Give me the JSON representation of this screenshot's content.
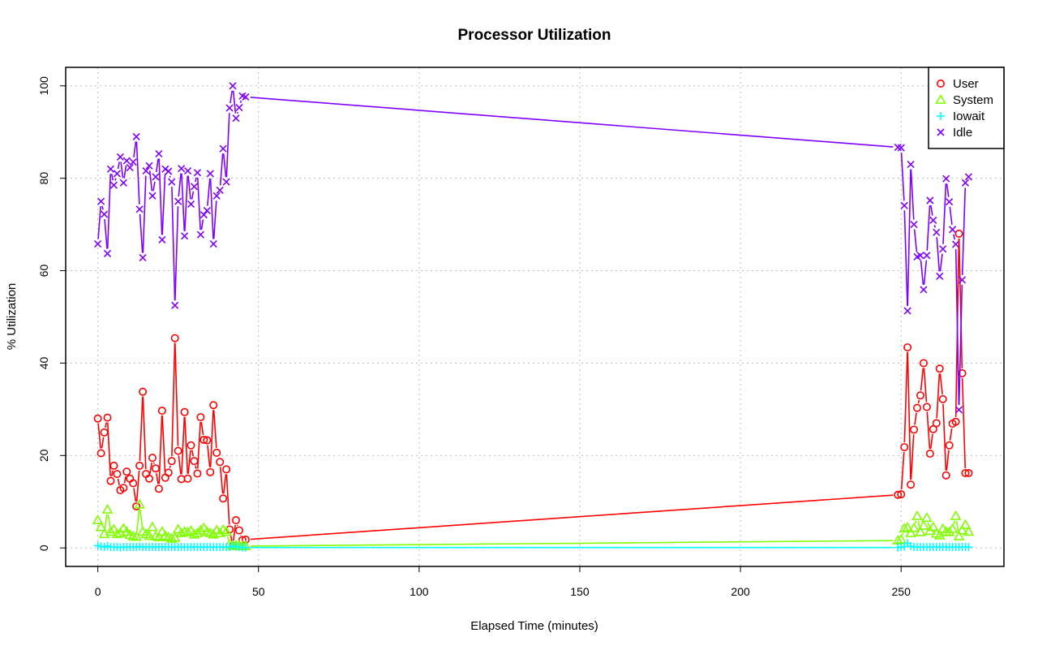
{
  "chart_data": {
    "type": "line",
    "title": "Processor Utilization",
    "xlabel": "Elapsed Time (minutes)",
    "ylabel": "% Utilization",
    "xlim": [
      -10,
      282
    ],
    "ylim": [
      -4,
      104
    ],
    "xticks": [
      0,
      50,
      100,
      150,
      200,
      250
    ],
    "yticks": [
      0,
      20,
      40,
      60,
      80,
      100
    ],
    "grid": true,
    "legend_position": "top-right",
    "series": [
      {
        "name": "User",
        "color": "#ff0000",
        "marker": "circle",
        "x": [
          0,
          1,
          2,
          3,
          4,
          5,
          6,
          7,
          8,
          9,
          10,
          11,
          12,
          13,
          14,
          15,
          16,
          17,
          18,
          19,
          20,
          21,
          22,
          23,
          24,
          25,
          26,
          27,
          28,
          29,
          30,
          31,
          32,
          33,
          34,
          35,
          36,
          37,
          38,
          39,
          40,
          41,
          42,
          43,
          44,
          45,
          46,
          249,
          250,
          251,
          252,
          253,
          254,
          255,
          256,
          257,
          258,
          259,
          260,
          261,
          262,
          263,
          264,
          265,
          266,
          267,
          268,
          269,
          270,
          271
        ],
        "y": [
          28,
          20.5,
          25,
          28.2,
          14.5,
          17.8,
          16,
          12.5,
          13,
          16.5,
          15,
          14,
          9,
          17.8,
          33.8,
          16,
          15,
          19.5,
          17.2,
          12.8,
          29.7,
          15.2,
          16.3,
          18.8,
          45.4,
          21,
          14.9,
          29.4,
          15,
          22.2,
          18.8,
          16.1,
          28.3,
          23.4,
          23.3,
          16.4,
          30.9,
          20.6,
          18.6,
          10.7,
          17,
          4,
          0.5,
          6,
          3.8,
          1.7,
          1.8,
          11.5,
          11.6,
          21.8,
          43.4,
          13.7,
          25.6,
          30.3,
          33,
          40,
          30.5,
          20.4,
          25.7,
          27,
          38.8,
          32.2,
          15.7,
          22.2,
          26.9,
          27.3,
          68,
          37.8,
          16.2,
          16.2
        ]
      },
      {
        "name": "System",
        "color": "#80ff00",
        "marker": "triangle",
        "x": [
          0,
          1,
          2,
          3,
          4,
          5,
          6,
          7,
          8,
          9,
          10,
          11,
          12,
          13,
          14,
          15,
          16,
          17,
          18,
          19,
          20,
          21,
          22,
          23,
          24,
          25,
          26,
          27,
          28,
          29,
          30,
          31,
          32,
          33,
          34,
          35,
          36,
          37,
          38,
          39,
          40,
          41,
          42,
          43,
          44,
          45,
          46,
          249,
          250,
          251,
          252,
          253,
          254,
          255,
          256,
          257,
          258,
          259,
          260,
          261,
          262,
          263,
          264,
          265,
          266,
          267,
          268,
          269,
          270,
          271
        ],
        "y": [
          6,
          4.5,
          3,
          8.3,
          3.5,
          4,
          3,
          3.2,
          4.2,
          3.5,
          2.8,
          2.5,
          2.4,
          9.4,
          3.5,
          3,
          2.6,
          4.5,
          2.5,
          2.3,
          3.5,
          2.6,
          2.3,
          2,
          2.2,
          4,
          3.2,
          3.5,
          3.4,
          3.7,
          2.9,
          3.2,
          3.8,
          4.3,
          3.5,
          3.2,
          2.9,
          3.8,
          3.2,
          3.9,
          3.5,
          0.8,
          0.4,
          0.6,
          0.5,
          0.4,
          0.4,
          1.6,
          1.8,
          4.2,
          4.4,
          3.2,
          4.3,
          6.9,
          3.4,
          4.8,
          6.5,
          3.7,
          4.5,
          3.1,
          2.7,
          4.1,
          3.5,
          3.4,
          4.1,
          6.9,
          2.5,
          3.8,
          5,
          3.5
        ]
      },
      {
        "name": "Iowait",
        "color": "#00ffff",
        "marker": "plus",
        "x": [
          0,
          1,
          2,
          3,
          4,
          5,
          6,
          7,
          8,
          9,
          10,
          11,
          12,
          13,
          14,
          15,
          16,
          17,
          18,
          19,
          20,
          21,
          22,
          23,
          24,
          25,
          26,
          27,
          28,
          29,
          30,
          31,
          32,
          33,
          34,
          35,
          36,
          37,
          38,
          39,
          40,
          41,
          42,
          43,
          44,
          45,
          46,
          249,
          250,
          251,
          252,
          253,
          254,
          255,
          256,
          257,
          258,
          259,
          260,
          261,
          262,
          263,
          264,
          265,
          266,
          267,
          268,
          269,
          270,
          271
        ],
        "y": [
          0.5,
          0.3,
          0.2,
          0.4,
          0.2,
          0.2,
          0.2,
          0.1,
          0.2,
          0.2,
          0.2,
          0.2,
          0.2,
          0.3,
          0.2,
          0.2,
          0.2,
          0.2,
          0.2,
          0.2,
          0.2,
          0.2,
          0.2,
          0.2,
          0.2,
          0.2,
          0.2,
          0.2,
          0.2,
          0.2,
          0.2,
          0.2,
          0.2,
          0.2,
          0.2,
          0.2,
          0.2,
          0.2,
          0.2,
          0.2,
          0.2,
          0.2,
          0.4,
          0.3,
          0.2,
          0.1,
          0.1,
          0.1,
          0.2,
          0.3,
          1,
          0.4,
          0.2,
          0.2,
          0.2,
          0.2,
          0.2,
          0.2,
          0.2,
          0.2,
          0.2,
          0.2,
          0.2,
          0.2,
          0.2,
          0.2,
          0.2,
          0.2,
          0.2,
          0.2
        ]
      },
      {
        "name": "Idle",
        "color": "#8000ff",
        "marker": "x",
        "x": [
          0,
          1,
          2,
          3,
          4,
          5,
          6,
          7,
          8,
          9,
          10,
          11,
          12,
          13,
          14,
          15,
          16,
          17,
          18,
          19,
          20,
          21,
          22,
          23,
          24,
          25,
          26,
          27,
          28,
          29,
          30,
          31,
          32,
          33,
          34,
          35,
          36,
          37,
          38,
          39,
          40,
          41,
          42,
          43,
          44,
          45,
          46,
          249,
          250,
          251,
          252,
          253,
          254,
          255,
          256,
          257,
          258,
          259,
          260,
          261,
          262,
          263,
          264,
          265,
          266,
          267,
          268,
          269,
          270,
          271
        ],
        "y": [
          65.8,
          75,
          72.2,
          63.7,
          82,
          78.5,
          81,
          84.6,
          79,
          83.8,
          82.3,
          83.5,
          89,
          73.3,
          62.8,
          81.6,
          82.7,
          76.2,
          80.3,
          85.3,
          66.7,
          82,
          81.5,
          79.2,
          52.5,
          75,
          82.1,
          67.5,
          81.6,
          74.4,
          78.2,
          81.2,
          67.8,
          72.1,
          73,
          81,
          65.8,
          76.2,
          77.4,
          86.4,
          79.2,
          95.2,
          100,
          93,
          95.3,
          97.8,
          97.6,
          86.7,
          86.6,
          74.1,
          51.3,
          83,
          70,
          63,
          63.3,
          55.9,
          63.3,
          75.2,
          70.9,
          68.3,
          58.8,
          64.7,
          79.9,
          74.9,
          68.9,
          65.7,
          29.9,
          58,
          79,
          80.3
        ]
      }
    ]
  }
}
